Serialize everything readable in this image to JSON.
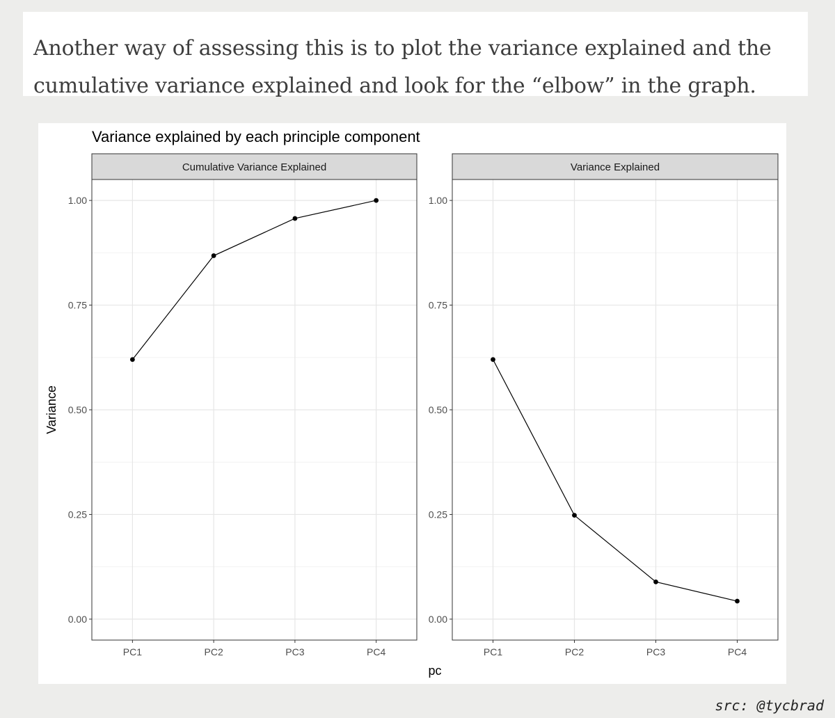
{
  "caption": {
    "line1": "Another way of assessing this is to plot the variance explained and the",
    "line2": "cumulative variance explained and look for the “elbow” in the graph."
  },
  "source_credit": "src: @tycbrad",
  "chart_data": {
    "type": "line",
    "title": "Variance explained by each principle component",
    "xlabel": "pc",
    "ylabel": "Variance",
    "ylim": [
      -0.05,
      1.05
    ],
    "yticks": [
      0.0,
      0.25,
      0.5,
      0.75,
      1.0
    ],
    "ytick_labels": [
      "0.00",
      "0.25",
      "0.50",
      "0.75",
      "1.00"
    ],
    "categories": [
      "PC1",
      "PC2",
      "PC3",
      "PC4"
    ],
    "grid": true,
    "marker_color": "#000000",
    "strip_fill": "#d9d9d9",
    "panels": [
      {
        "name": "Cumulative Variance Explained",
        "values": [
          0.62,
          0.868,
          0.957,
          1.0
        ]
      },
      {
        "name": "Variance Explained",
        "values": [
          0.62,
          0.248,
          0.089,
          0.043
        ]
      }
    ]
  }
}
